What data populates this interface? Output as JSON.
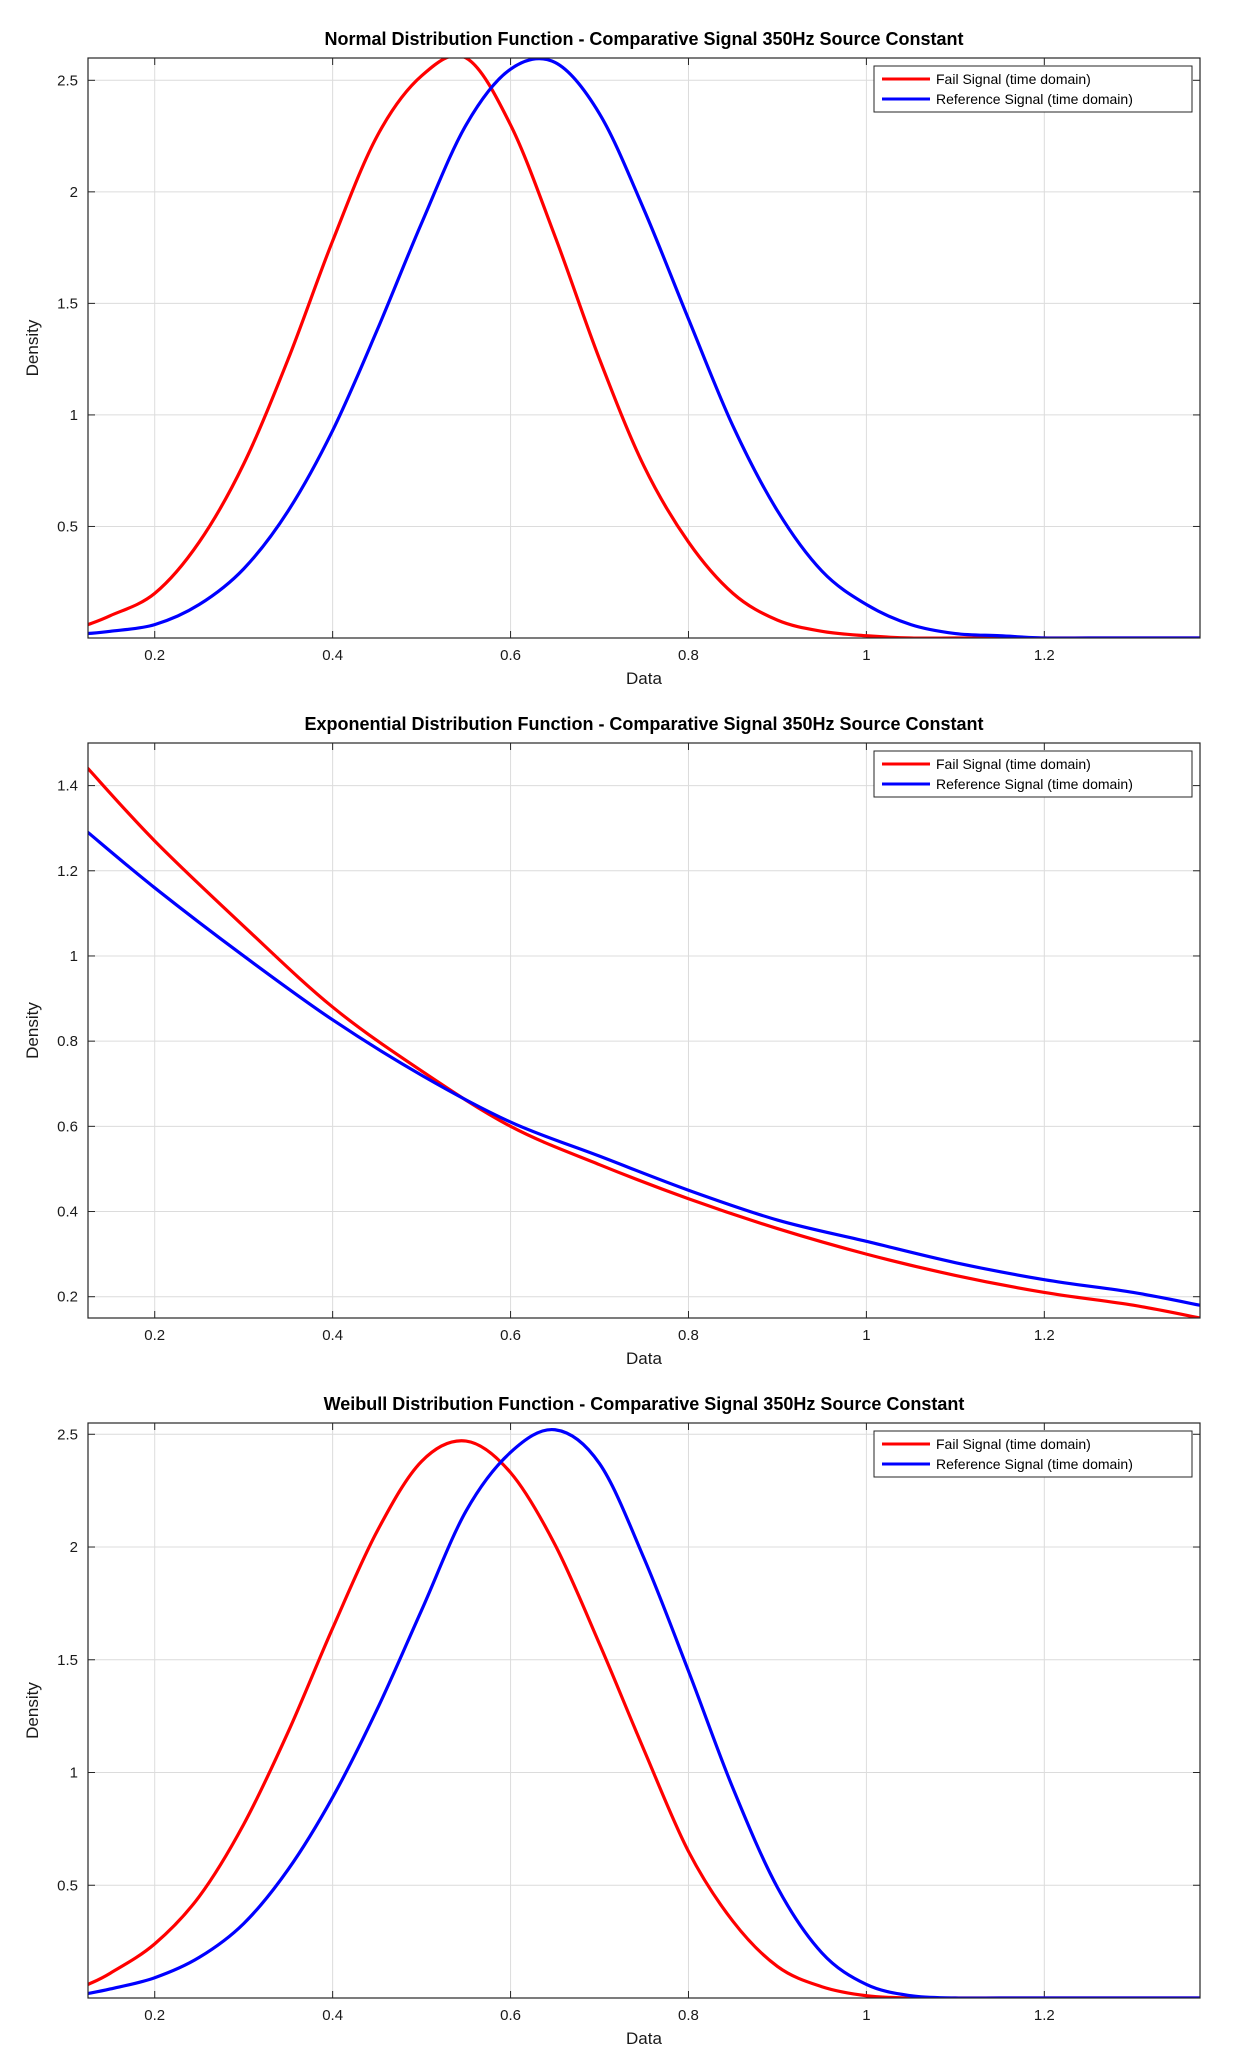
{
  "chart_data": [
    {
      "type": "line",
      "title": "Normal Distribution Function - Comparative Signal 350Hz Source Constant",
      "xlabel": "Data",
      "ylabel": "Density",
      "xlim": [
        0.125,
        1.375
      ],
      "ylim": [
        0.0,
        2.6
      ],
      "xticks": [
        0.2,
        0.4,
        0.6,
        0.8,
        1.0,
        1.2
      ],
      "xtick_labels": [
        "0.2",
        "0.4",
        "0.6",
        "0.8",
        "1",
        "1.2"
      ],
      "yticks": [
        0.5,
        1.0,
        1.5,
        2.0,
        2.5
      ],
      "ytick_labels": [
        "0.5",
        "1",
        "1.5",
        "2",
        "2.5"
      ],
      "grid": true,
      "legend_position": "top-right",
      "series": [
        {
          "name": "Fail Signal (time domain)",
          "color": "#ff0000",
          "x": [
            0.125,
            0.15,
            0.2,
            0.25,
            0.3,
            0.35,
            0.4,
            0.45,
            0.5,
            0.55,
            0.6,
            0.65,
            0.7,
            0.75,
            0.8,
            0.85,
            0.9,
            0.95,
            1.0,
            1.05,
            1.1,
            1.15,
            1.2,
            1.25,
            1.3,
            1.375
          ],
          "y": [
            0.06,
            0.1,
            0.2,
            0.43,
            0.78,
            1.25,
            1.78,
            2.25,
            2.52,
            2.6,
            2.3,
            1.8,
            1.25,
            0.77,
            0.43,
            0.2,
            0.08,
            0.03,
            0.01,
            0.0,
            0.0,
            0.0,
            0.0,
            0.0,
            0.0,
            0.0
          ]
        },
        {
          "name": "Reference Signal (time domain)",
          "color": "#0000ff",
          "x": [
            0.125,
            0.15,
            0.2,
            0.25,
            0.3,
            0.35,
            0.4,
            0.45,
            0.5,
            0.55,
            0.6,
            0.65,
            0.7,
            0.75,
            0.8,
            0.85,
            0.9,
            0.95,
            1.0,
            1.05,
            1.1,
            1.15,
            1.2,
            1.25,
            1.3,
            1.375
          ],
          "y": [
            0.02,
            0.03,
            0.06,
            0.15,
            0.31,
            0.57,
            0.93,
            1.38,
            1.86,
            2.3,
            2.55,
            2.58,
            2.35,
            1.92,
            1.43,
            0.95,
            0.57,
            0.3,
            0.15,
            0.06,
            0.02,
            0.01,
            0.0,
            0.0,
            0.0,
            0.0
          ]
        }
      ]
    },
    {
      "type": "line",
      "title": "Exponential Distribution Function - Comparative Signal 350Hz Source Constant",
      "xlabel": "Data",
      "ylabel": "Density",
      "xlim": [
        0.125,
        1.375
      ],
      "ylim": [
        0.15,
        1.5
      ],
      "xticks": [
        0.2,
        0.4,
        0.6,
        0.8,
        1.0,
        1.2
      ],
      "xtick_labels": [
        "0.2",
        "0.4",
        "0.6",
        "0.8",
        "1",
        "1.2"
      ],
      "yticks": [
        0.2,
        0.4,
        0.6,
        0.8,
        1.0,
        1.2,
        1.4
      ],
      "ytick_labels": [
        "0.2",
        "0.4",
        "0.6",
        "0.8",
        "1",
        "1.2",
        "1.4"
      ],
      "grid": true,
      "legend_position": "top-right",
      "series": [
        {
          "name": "Fail Signal (time domain)",
          "color": "#ff0000",
          "x": [
            0.125,
            0.2,
            0.3,
            0.4,
            0.5,
            0.6,
            0.7,
            0.8,
            0.9,
            1.0,
            1.1,
            1.2,
            1.3,
            1.375
          ],
          "y": [
            1.44,
            1.27,
            1.07,
            0.88,
            0.73,
            0.6,
            0.51,
            0.43,
            0.36,
            0.3,
            0.25,
            0.21,
            0.18,
            0.15
          ]
        },
        {
          "name": "Reference Signal (time domain)",
          "color": "#0000ff",
          "x": [
            0.125,
            0.2,
            0.3,
            0.4,
            0.5,
            0.6,
            0.7,
            0.8,
            0.9,
            1.0,
            1.1,
            1.2,
            1.3,
            1.375
          ],
          "y": [
            1.29,
            1.16,
            1.0,
            0.85,
            0.72,
            0.61,
            0.53,
            0.45,
            0.38,
            0.33,
            0.28,
            0.24,
            0.21,
            0.18
          ]
        }
      ]
    },
    {
      "type": "line",
      "title": "Weibull Distribution Function - Comparative Signal 350Hz Source Constant",
      "xlabel": "Data",
      "ylabel": "Density",
      "xlim": [
        0.125,
        1.375
      ],
      "ylim": [
        0.0,
        2.55
      ],
      "xticks": [
        0.2,
        0.4,
        0.6,
        0.8,
        1.0,
        1.2
      ],
      "xtick_labels": [
        "0.2",
        "0.4",
        "0.6",
        "0.8",
        "1",
        "1.2"
      ],
      "yticks": [
        0.5,
        1.0,
        1.5,
        2.0,
        2.5
      ],
      "ytick_labels": [
        "0.5",
        "1",
        "1.5",
        "2",
        "2.5"
      ],
      "grid": true,
      "legend_position": "top-right",
      "series": [
        {
          "name": "Fail Signal (time domain)",
          "color": "#ff0000",
          "x": [
            0.125,
            0.15,
            0.2,
            0.25,
            0.3,
            0.35,
            0.4,
            0.45,
            0.5,
            0.55,
            0.6,
            0.65,
            0.7,
            0.75,
            0.8,
            0.85,
            0.9,
            0.95,
            1.0,
            1.05,
            1.1,
            1.15,
            1.2,
            1.25,
            1.3,
            1.375
          ],
          "y": [
            0.06,
            0.11,
            0.24,
            0.45,
            0.77,
            1.18,
            1.64,
            2.07,
            2.38,
            2.47,
            2.33,
            2.01,
            1.57,
            1.1,
            0.65,
            0.34,
            0.14,
            0.05,
            0.01,
            0.0,
            0.0,
            0.0,
            0.0,
            0.0,
            0.0,
            0.0
          ]
        },
        {
          "name": "Reference Signal (time domain)",
          "color": "#0000ff",
          "x": [
            0.125,
            0.15,
            0.2,
            0.25,
            0.3,
            0.35,
            0.4,
            0.45,
            0.5,
            0.55,
            0.6,
            0.65,
            0.7,
            0.75,
            0.8,
            0.85,
            0.9,
            0.95,
            1.0,
            1.05,
            1.1,
            1.15,
            1.2,
            1.25,
            1.3,
            1.375
          ],
          "y": [
            0.02,
            0.04,
            0.09,
            0.18,
            0.33,
            0.57,
            0.89,
            1.28,
            1.72,
            2.16,
            2.42,
            2.52,
            2.37,
            1.95,
            1.45,
            0.93,
            0.49,
            0.2,
            0.06,
            0.01,
            0.0,
            0.0,
            0.0,
            0.0,
            0.0,
            0.0
          ]
        }
      ]
    }
  ]
}
